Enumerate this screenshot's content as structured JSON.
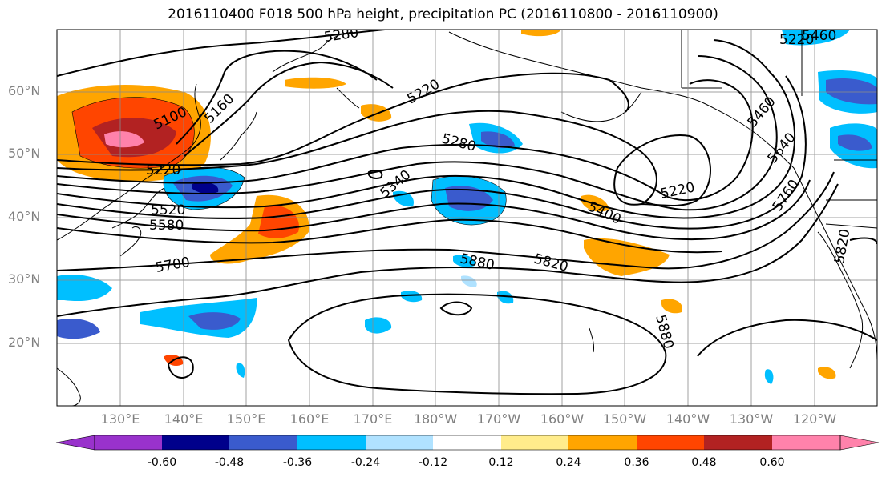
{
  "title": "2016110400 F018 500 hPa height, precipitation PC (2016110800 - 2016110900)",
  "lat_labels": [
    "60°N",
    "50°N",
    "40°N",
    "30°N",
    "20°N"
  ],
  "lon_labels": [
    "130°E",
    "140°E",
    "150°E",
    "160°E",
    "170°E",
    "180°W",
    "170°W",
    "160°W",
    "150°W",
    "140°W",
    "130°W",
    "120°W"
  ],
  "colorbar": {
    "labels": [
      "-0.60",
      "-0.48",
      "-0.36",
      "-0.24",
      "-0.12",
      "0.12",
      "0.24",
      "0.36",
      "0.48",
      "0.60"
    ],
    "colors": [
      "#9932cc",
      "#00008b",
      "#3a5bcd",
      "#00bfff",
      "#b0e2ff",
      "#ffffff",
      "#ffec8b",
      "#ffa500",
      "#ff4500",
      "#b22222",
      "#ff82ab"
    ]
  },
  "contour_labels": [
    "5280",
    "5220",
    "5160",
    "5100",
    "5220",
    "5280",
    "5340",
    "5220",
    "5400",
    "5460",
    "5520",
    "5580",
    "5700",
    "5880",
    "5820",
    "5880",
    "5760",
    "5640",
    "5460",
    "5820",
    "5220",
    "5460"
  ]
}
